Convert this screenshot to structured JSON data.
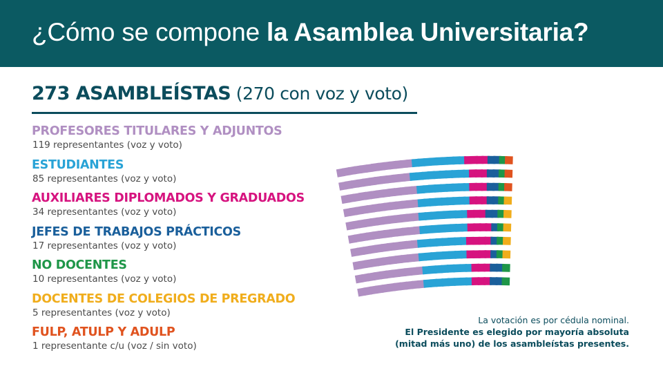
{
  "header": {
    "title_part1": "¿Cómo se compone ",
    "title_part2": "la Asamblea Universitaria?",
    "bg_color": "#0b5a62"
  },
  "total": {
    "headline": "273 ASAMBLEÍSTAS",
    "subline": " (270 con voz y voto)"
  },
  "groups": [
    {
      "name": "PROFESORES TITULARES Y ADJUNTOS",
      "desc": "119 representantes (voz y voto)",
      "color": "#b08fc2",
      "seats": 119
    },
    {
      "name": "ESTUDIANTES",
      "desc": "85 representantes (voz y voto)",
      "color": "#29a3d6",
      "seats": 85
    },
    {
      "name": "AUXILIARES DIPLOMADOS Y GRADUADOS",
      "desc": "34 representantes (voz y voto)",
      "color": "#d6137f",
      "seats": 34
    },
    {
      "name": "JEFES DE TRABAJOS PRÁCTICOS",
      "desc": "17 representantes (voz y voto)",
      "color": "#1a5f9b",
      "seats": 17
    },
    {
      "name": "NO DOCENTES",
      "desc": "10 representantes (voz y voto)",
      "color": "#1e9648",
      "seats": 10
    },
    {
      "name": "DOCENTES DE COLEGIOS DE PREGRADO",
      "desc": "5 representantes (voz y voto)",
      "color": "#f0ad1c",
      "seats": 5
    },
    {
      "name": "FULP, ATULP Y ADULP",
      "desc": "1 representante c/u (voz / sin voto)",
      "color": "#e0531f",
      "seats": 3
    }
  ],
  "notes": {
    "line1": "La votación es por cédula nominal.",
    "line2": "El Presidente es elegido por mayoría absoluta",
    "line3": "(mitad más uno) de los asambleístas presentes."
  }
}
